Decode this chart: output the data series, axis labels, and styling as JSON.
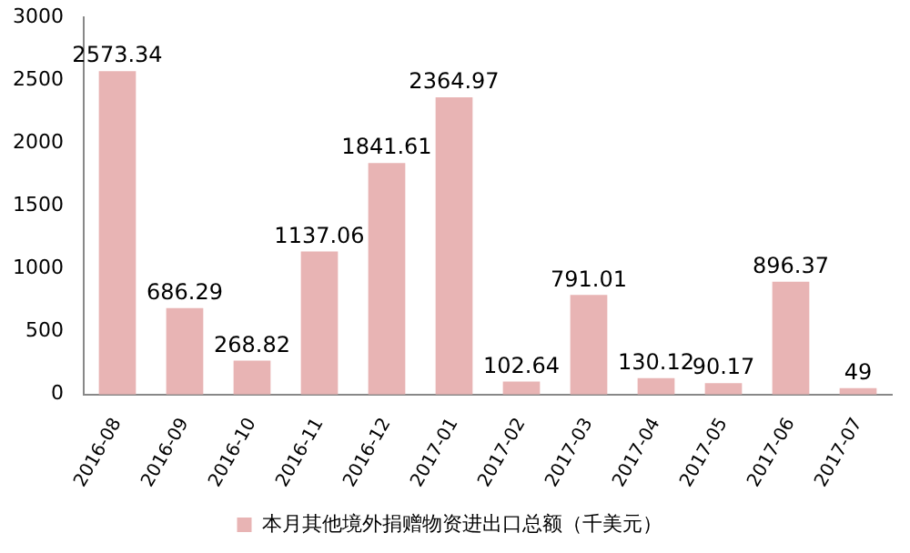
{
  "chart_data": {
    "type": "bar",
    "categories": [
      "2016-08",
      "2016-09",
      "2016-10",
      "2016-11",
      "2016-12",
      "2017-01",
      "2017-02",
      "2017-03",
      "2017-04",
      "2017-05",
      "2017-06",
      "2017-07"
    ],
    "series": [
      {
        "name": "本月其他境外捐赠物资进出口总额（千美元）",
        "color": "#e8b4b4",
        "values": [
          2573.34,
          686.29,
          268.82,
          1137.06,
          1841.61,
          2364.97,
          102.64,
          791.01,
          130.12,
          90.17,
          896.37,
          49
        ]
      }
    ],
    "ylim": [
      0,
      3000
    ],
    "yticks": [
      0,
      500,
      1000,
      1500,
      2000,
      2500,
      3000
    ],
    "grid": false,
    "legend": "bottom",
    "data_labels": true
  }
}
